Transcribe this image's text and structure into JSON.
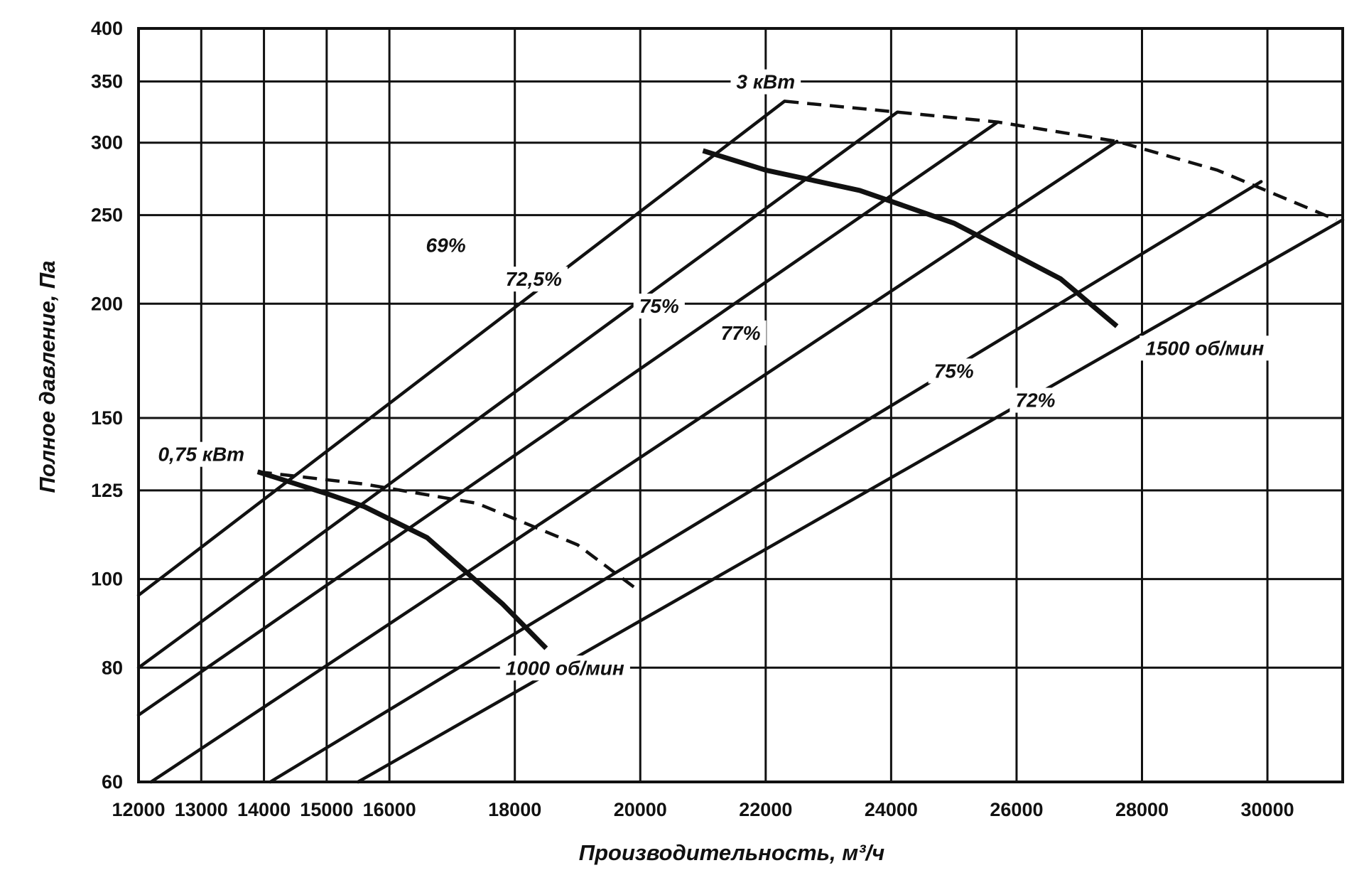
{
  "chart_data": {
    "type": "line",
    "title": "",
    "xlabel": "Производительность, м³/ч",
    "ylabel": "Полное давление, Па",
    "xlim": [
      12000,
      31200
    ],
    "ylim": [
      60,
      400
    ],
    "yscale": "log",
    "grid": true,
    "x_ticks": [
      {
        "value": 12000,
        "label": "12000"
      },
      {
        "value": 13000,
        "label": "13000"
      },
      {
        "value": 14000,
        "label": "14000"
      },
      {
        "value": 15000,
        "label": "15000"
      },
      {
        "value": 16000,
        "label": "16000"
      },
      {
        "value": 18000,
        "label": "18000"
      },
      {
        "value": 20000,
        "label": "20000"
      },
      {
        "value": 22000,
        "label": "22000"
      },
      {
        "value": 24000,
        "label": "24000"
      },
      {
        "value": 26000,
        "label": "26000"
      },
      {
        "value": 28000,
        "label": "28000"
      },
      {
        "value": 30000,
        "label": "30000"
      }
    ],
    "y_ticks": [
      {
        "value": 60,
        "label": "60"
      },
      {
        "value": 80,
        "label": "80"
      },
      {
        "value": 100,
        "label": "100"
      },
      {
        "value": 125,
        "label": "125"
      },
      {
        "value": 150,
        "label": "150"
      },
      {
        "value": 200,
        "label": "200"
      },
      {
        "value": 250,
        "label": "250"
      },
      {
        "value": 300,
        "label": "300"
      },
      {
        "value": 350,
        "label": "350"
      },
      {
        "value": 400,
        "label": "400"
      }
    ],
    "series": [
      {
        "name": "1000 об/мин",
        "style": "solid-thick",
        "points": [
          [
            13900,
            131
          ],
          [
            15000,
            124
          ],
          [
            15600,
            120
          ],
          [
            16600,
            111
          ],
          [
            17800,
            94
          ],
          [
            18500,
            84
          ]
        ]
      },
      {
        "name": "1500 об/мин",
        "style": "solid-thick",
        "points": [
          [
            21000,
            294
          ],
          [
            22000,
            280
          ],
          [
            23500,
            266
          ],
          [
            25000,
            245
          ],
          [
            26700,
            213
          ],
          [
            27600,
            189
          ]
        ]
      },
      {
        "name": "0,75 кВт",
        "style": "dashed",
        "points": [
          [
            13900,
            131
          ],
          [
            15600,
            127
          ],
          [
            17400,
            121
          ],
          [
            19000,
            109
          ],
          [
            19900,
            98
          ]
        ]
      },
      {
        "name": "3 кВт",
        "style": "dashed",
        "points": [
          [
            22300,
            333
          ],
          [
            24100,
            324
          ],
          [
            25700,
            316
          ],
          [
            27600,
            301
          ],
          [
            29200,
            280
          ],
          [
            31100,
            247
          ]
        ]
      }
    ],
    "system_lines": [
      {
        "x": [
          12000,
          22300
        ],
        "y": [
          96,
          333
        ]
      },
      {
        "x": [
          12000,
          24100
        ],
        "y": [
          80,
          324
        ]
      },
      {
        "x": [
          12000,
          25700
        ],
        "y": [
          71,
          316
        ]
      },
      {
        "x": [
          12200,
          27600
        ],
        "y": [
          60,
          301
        ]
      },
      {
        "x": [
          14100,
          29900
        ],
        "y": [
          60,
          272
        ]
      },
      {
        "x": [
          15500,
          31200
        ],
        "y": [
          60,
          247
        ]
      }
    ],
    "annotations": [
      {
        "text": "3 кВт",
        "x": 22000,
        "y": 350
      },
      {
        "text": "0,75 кВт",
        "x": 13000,
        "y": 137
      },
      {
        "text": "69%",
        "x": 16900,
        "y": 232
      },
      {
        "text": "72,5%",
        "x": 18300,
        "y": 213
      },
      {
        "text": "75%",
        "x": 20300,
        "y": 199
      },
      {
        "text": "77%",
        "x": 21600,
        "y": 186
      },
      {
        "text": "75%",
        "x": 25000,
        "y": 169
      },
      {
        "text": "72%",
        "x": 26300,
        "y": 157
      },
      {
        "text": "1500 об/мин",
        "x": 29000,
        "y": 179
      },
      {
        "text": "1000 об/мин",
        "x": 18800,
        "y": 80
      }
    ]
  }
}
